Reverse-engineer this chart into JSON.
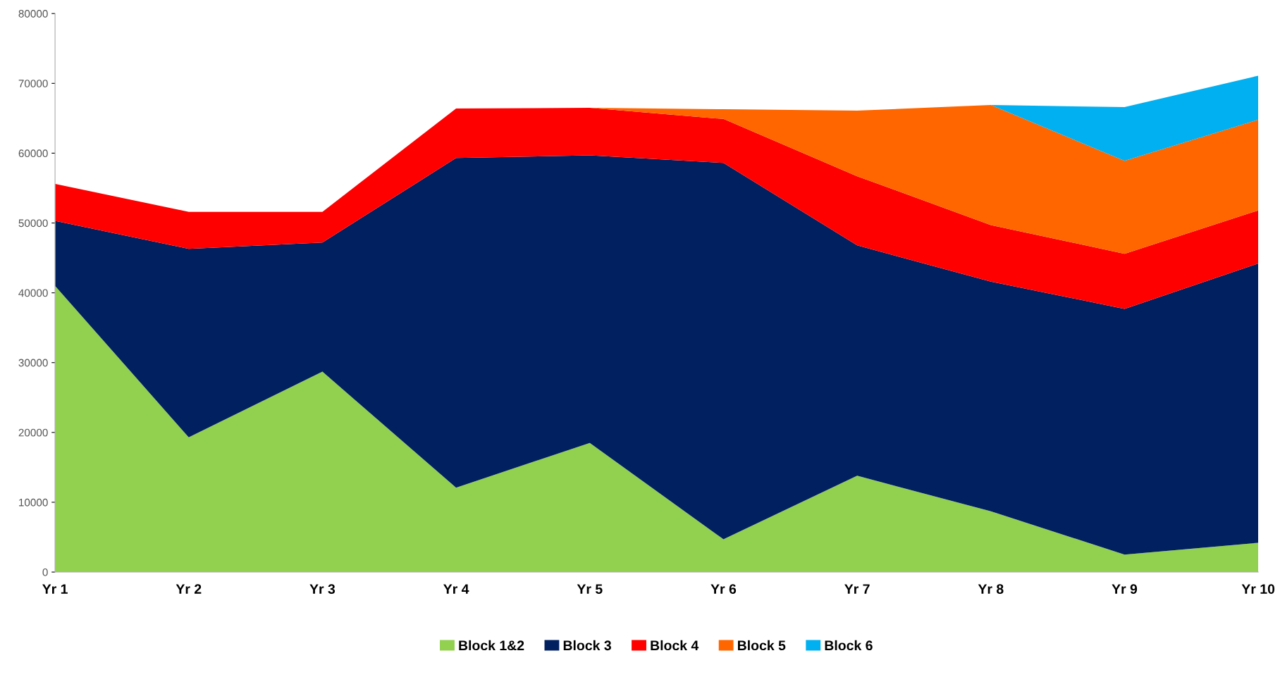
{
  "chart_data": {
    "type": "area",
    "stacked": true,
    "categories": [
      "Yr 1",
      "Yr 2",
      "Yr 3",
      "Yr 4",
      "Yr 5",
      "Yr 6",
      "Yr 7",
      "Yr 8",
      "Yr 9",
      "Yr 10"
    ],
    "series": [
      {
        "name": "Block 1&2",
        "color": "#92d050",
        "values": [
          41000,
          19300,
          28700,
          12100,
          18500,
          4700,
          13800,
          8700,
          2500,
          4200
        ]
      },
      {
        "name": "Block 3",
        "color": "#002060",
        "values": [
          9300,
          27000,
          18500,
          47200,
          41200,
          53900,
          33000,
          32900,
          35200,
          40000
        ]
      },
      {
        "name": "Block 4",
        "color": "#ff0000",
        "values": [
          5300,
          5300,
          4400,
          7100,
          6800,
          6300,
          9900,
          8100,
          7900,
          7600
        ]
      },
      {
        "name": "Block 5",
        "color": "#ff6600",
        "values": [
          0,
          0,
          0,
          0,
          0,
          1400,
          9400,
          17200,
          13300,
          13000
        ]
      },
      {
        "name": "Block 6",
        "color": "#00b0f0",
        "values": [
          0,
          0,
          0,
          0,
          0,
          0,
          0,
          0,
          7700,
          6300
        ]
      }
    ],
    "ylim": [
      0,
      80000
    ],
    "yticks": [
      0,
      10000,
      20000,
      30000,
      40000,
      50000,
      60000,
      70000,
      80000
    ],
    "grid": false,
    "legend": "bottom"
  }
}
